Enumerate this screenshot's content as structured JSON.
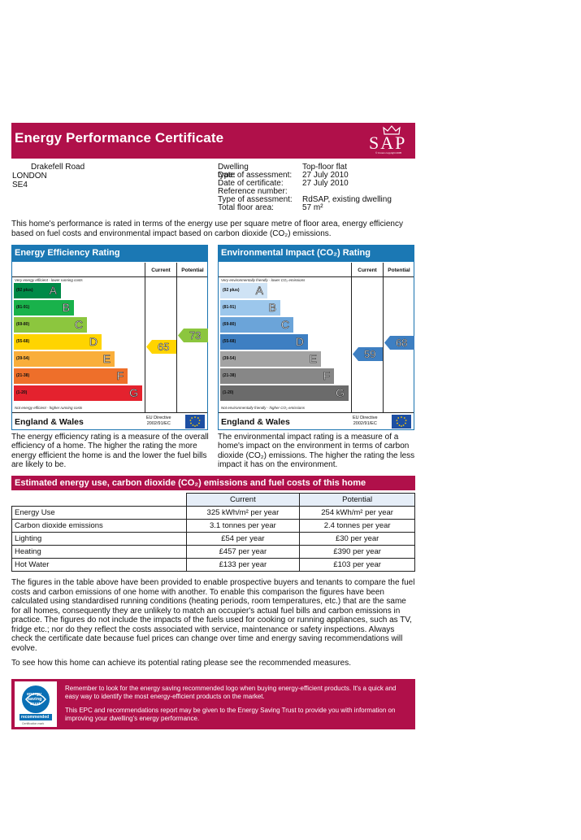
{
  "header": {
    "title": "Energy Performance Certificate",
    "logo_text": "SAP",
    "logo_copyright": "© Crown copyright 2005"
  },
  "address": {
    "line1": "Drakefell Road",
    "line2": "LONDON",
    "line3": "SE4"
  },
  "info": {
    "rows": [
      {
        "label": "Dwelling type:",
        "value": "Top-floor flat"
      },
      {
        "label": "Date of assessment:",
        "value": "27 July 2010"
      },
      {
        "label": "Date of certificate:",
        "value": "27 July 2010"
      },
      {
        "label": "Reference number:",
        "value": ""
      },
      {
        "label": "Type of assessment:",
        "value": "RdSAP, existing dwelling"
      },
      {
        "label": "Total floor area:",
        "value": "57 m²"
      }
    ]
  },
  "intro": "This home's performance is rated in terms of the energy use per square metre of floor area, energy efficiency based on fuel costs and environmental impact based on carbon dioxide (CO₂) emissions.",
  "efficiency": {
    "title": "Energy Efficiency Rating",
    "col_current": "Current",
    "col_potential": "Potential",
    "top_hint": "Very energy efficient - lower running costs",
    "bottom_hint": "Not energy efficient - higher running costs",
    "bands": [
      {
        "range": "(92 plus)",
        "letter": "A",
        "color": "#008a48"
      },
      {
        "range": "(81-91)",
        "letter": "B",
        "color": "#19b24b"
      },
      {
        "range": "(69-80)",
        "letter": "C",
        "color": "#8cc63e"
      },
      {
        "range": "(55-68)",
        "letter": "D",
        "color": "#ffd400"
      },
      {
        "range": "(39-54)",
        "letter": "E",
        "color": "#f9ae3b"
      },
      {
        "range": "(21-38)",
        "letter": "F",
        "color": "#ee6f2a"
      },
      {
        "range": "(1-20)",
        "letter": "G",
        "color": "#e4222e"
      }
    ],
    "current": 65,
    "current_color": "#ffd400",
    "potential": 73,
    "potential_color": "#8cc63e",
    "footer_left": "England & Wales",
    "footer_eu_line1": "EU Directive",
    "footer_eu_line2": "2002/91/EC"
  },
  "environment": {
    "title": "Environmental Impact (CO₂) Rating",
    "col_current": "Current",
    "col_potential": "Potential",
    "top_hint": "Very environmentally friendly - lower CO₂ emissions",
    "bottom_hint": "Not environmentally friendly - higher CO₂ emissions",
    "bands": [
      {
        "range": "(92 plus)",
        "letter": "A",
        "color": "#cfe3f5"
      },
      {
        "range": "(81-91)",
        "letter": "B",
        "color": "#9cc7ec"
      },
      {
        "range": "(69-80)",
        "letter": "C",
        "color": "#6ba4d9"
      },
      {
        "range": "(55-68)",
        "letter": "D",
        "color": "#3e7fc2"
      },
      {
        "range": "(39-54)",
        "letter": "E",
        "color": "#a3a3a3"
      },
      {
        "range": "(21-38)",
        "letter": "F",
        "color": "#878787"
      },
      {
        "range": "(1-20)",
        "letter": "G",
        "color": "#6b6b6b"
      }
    ],
    "current": 59,
    "current_color": "#3e7fc2",
    "potential": 68,
    "potential_color": "#3e7fc2",
    "footer_left": "England & Wales",
    "footer_eu_line1": "EU Directive",
    "footer_eu_line2": "2002/91/EC"
  },
  "efficiency_desc": "The energy efficiency rating is a measure of the overall efficiency of a home. The higher the rating the more energy efficient the home is and the lower the fuel bills are likely to be.",
  "environment_desc": "The environmental impact rating is a measure of a home's impact on the environment in terms of carbon dioxide (CO₂) emissions. The higher the rating the less impact it has on the environment.",
  "costs": {
    "title": "Estimated energy use, carbon dioxide (CO₂) emissions and fuel costs of this home",
    "col_current": "Current",
    "col_potential": "Potential",
    "rows": [
      {
        "label": "Energy Use",
        "current": "325 kWh/m² per year",
        "potential": "254 kWh/m² per year"
      },
      {
        "label": "Carbon dioxide emissions",
        "current": "3.1 tonnes per year",
        "potential": "2.4 tonnes per year"
      },
      {
        "label": "Lighting",
        "current": "£54 per year",
        "potential": "£30 per year"
      },
      {
        "label": "Heating",
        "current": "£457 per year",
        "potential": "£390 per year"
      },
      {
        "label": "Hot Water",
        "current": "£133 per year",
        "potential": "£103 per year"
      }
    ]
  },
  "figures_para": "The figures in the table above have been provided to enable prospective buyers and tenants to compare the fuel costs and carbon emissions of one home with another. To enable this comparison the figures have been calculated using standardised running conditions (heating periods, room temperatures, etc.) that are the same for all homes, consequently they are unlikely to match an occupier's actual fuel bills and carbon emissions in practice. The figures do not include the impacts of the fuels used for cooking or running appliances, such as TV, fridge etc.; nor do they reflect the costs associated with service, maintenance or safety inspections. Always check the certificate date because fuel prices can change over time and energy saving recommendations will evolve.",
  "see_para": "To see how this home can achieve its potential rating please see the recommended measures.",
  "energy_saving": {
    "logo_line1": "energy",
    "logo_line2": "saving",
    "logo_line3": "trust",
    "logo_badge": "recommended",
    "logo_caption": "Certification mark",
    "text1": "Remember to look for the energy saving recommended logo when buying energy-efficient products. It's a quick and easy way to identify the most energy-efficient products on the market.",
    "text2": "This EPC and recommendations report may be given to the Energy Saving Trust to provide you with information on improving your dwelling's energy performance."
  }
}
